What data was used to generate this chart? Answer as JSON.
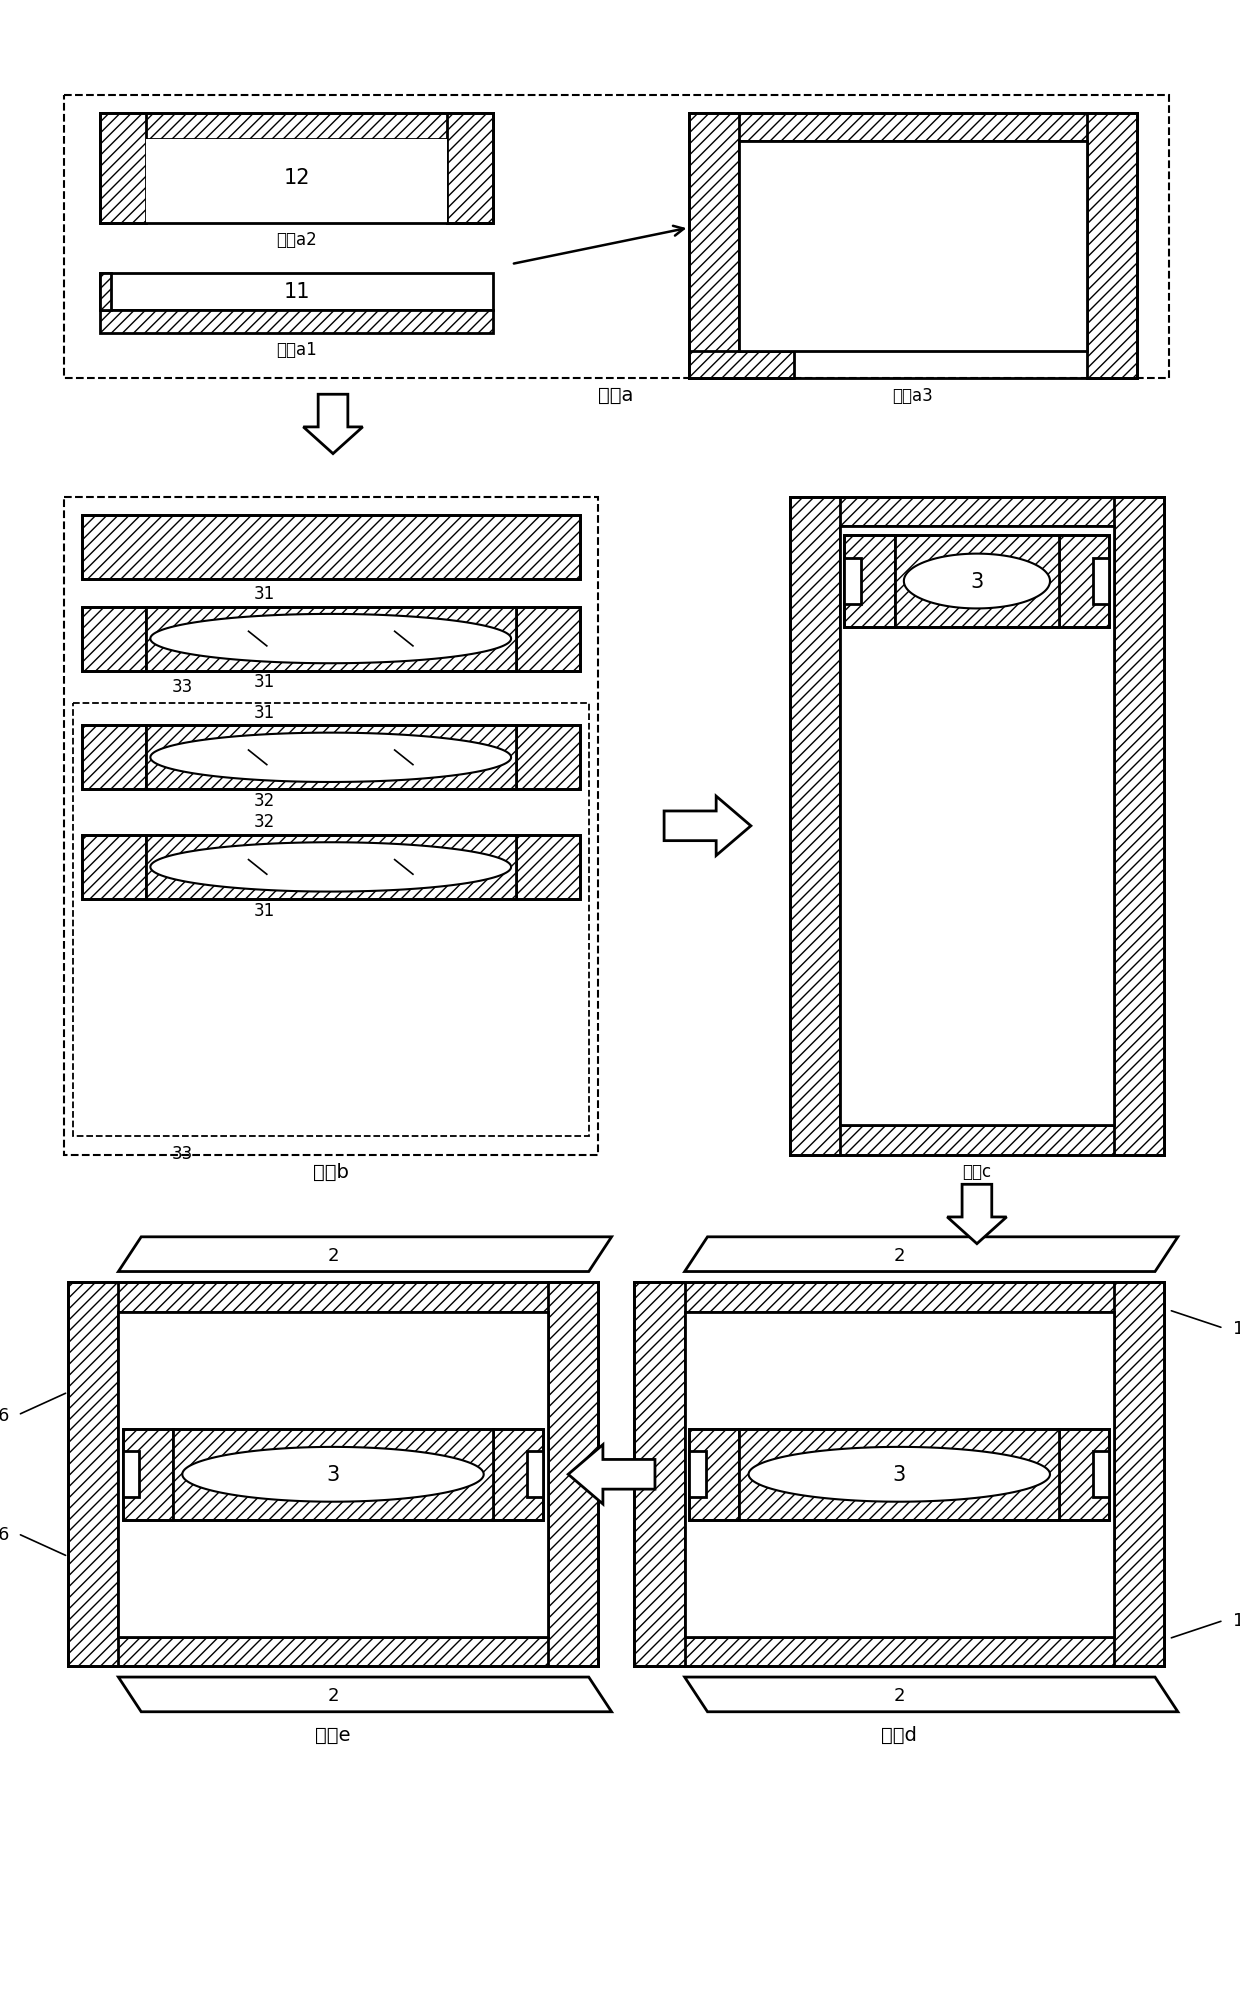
{
  "fig_width": 12.4,
  "fig_height": 20.08,
  "bg_color": "#ffffff",
  "labels": {
    "step_a": "步骤a",
    "step_a1": "步骤a1",
    "step_a2": "步骤a2",
    "step_a3": "步骤a3",
    "step_b": "步骤b",
    "step_c": "步骤c",
    "step_d": "步骤d",
    "step_e": "步骤e",
    "num_11": "11",
    "num_12": "12",
    "num_2": "2",
    "num_3": "3",
    "num_6": "6",
    "num_31": "31",
    "num_32": "32",
    "num_33": "33",
    "num_1": "1"
  }
}
